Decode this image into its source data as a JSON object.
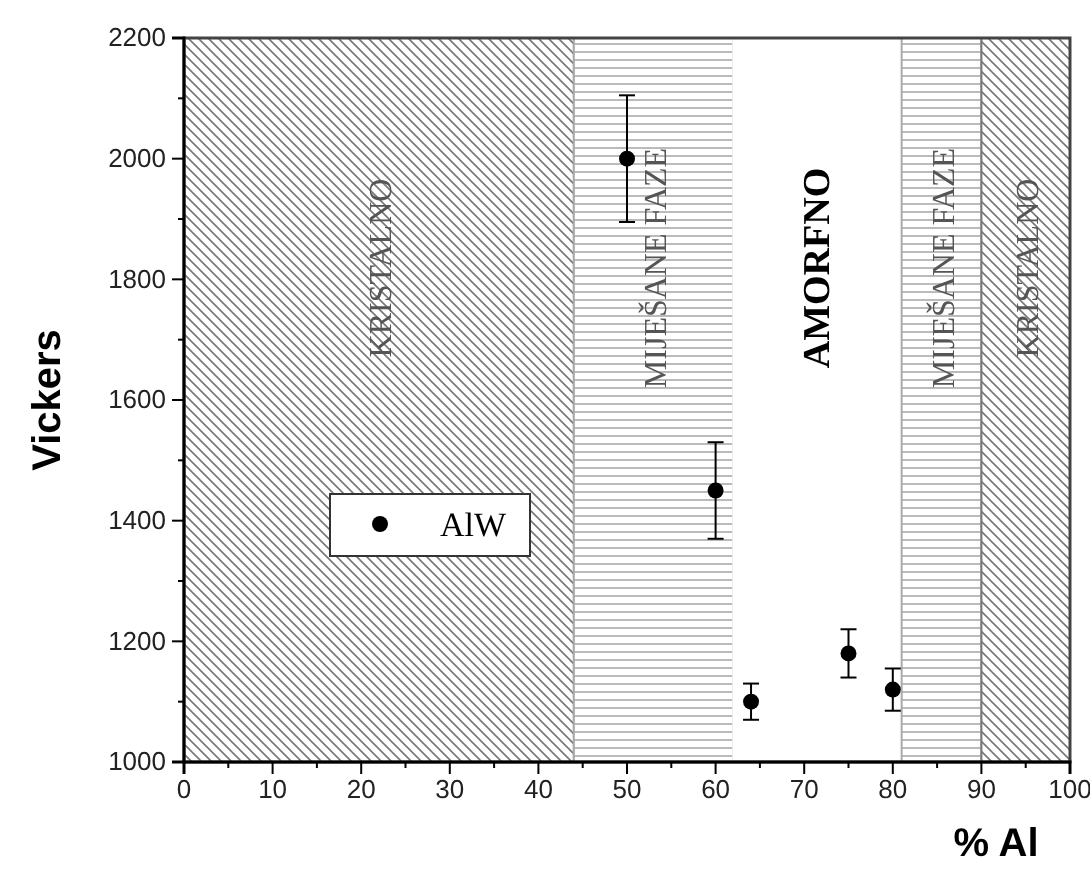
{
  "chart_data": {
    "type": "scatter",
    "xlabel": "% Al",
    "ylabel": "Vickers",
    "xlim": [
      0,
      100
    ],
    "xticks": [
      0,
      10,
      20,
      30,
      40,
      50,
      60,
      70,
      80,
      90,
      100
    ],
    "ylim": [
      1000,
      2200
    ],
    "yticks": [
      1000,
      1200,
      1400,
      1600,
      1800,
      2000,
      2200
    ],
    "x": [
      50,
      60,
      64,
      75,
      80
    ],
    "series": [
      {
        "name": "AlW",
        "color": "#000000",
        "values": [
          2000,
          1450,
          1100,
          1180,
          1120
        ],
        "errors": [
          105,
          80,
          30,
          40,
          35
        ]
      }
    ],
    "bands": [
      {
        "axis": "x",
        "from": 0,
        "to": 44,
        "label": "KRISTALNO",
        "color": "#777777"
      },
      {
        "axis": "x",
        "from": 44,
        "to": 62,
        "label": "MIJEŠANE FAZE",
        "color": "#aaaaaa"
      },
      {
        "axis": "x",
        "from": 62,
        "to": 81,
        "label": "AMORFNO",
        "color": "#ffffff"
      },
      {
        "axis": "x",
        "from": 81,
        "to": 90,
        "label": "MIJEŠANE FAZE",
        "color": "#aaaaaa"
      },
      {
        "axis": "x",
        "from": 90,
        "to": 100,
        "label": "KRISTALNO",
        "color": "#777777"
      }
    ],
    "marker": "circle",
    "legend": "left"
  }
}
